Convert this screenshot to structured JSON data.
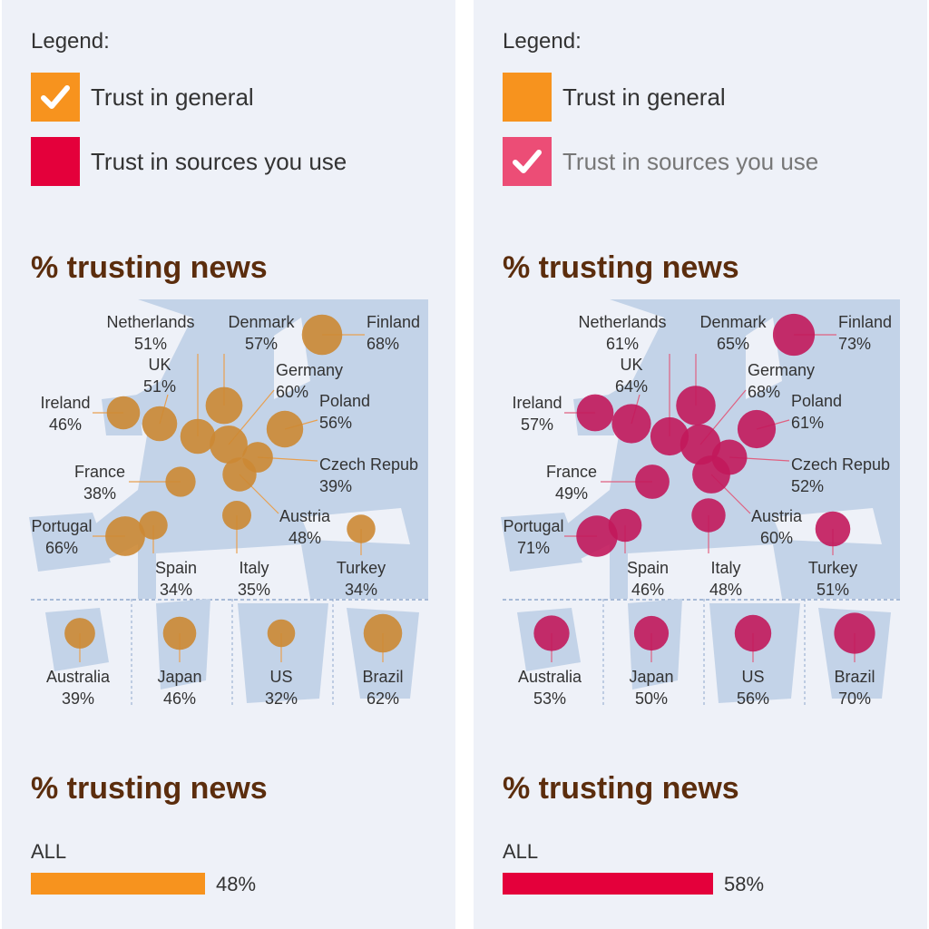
{
  "legend": {
    "title": "Legend:",
    "items": [
      {
        "label": "Trust in general",
        "color": "#f7931e"
      },
      {
        "label": "Trust in sources you use",
        "color": "#e4003b"
      }
    ]
  },
  "colors": {
    "general_bubble": "#cc8833",
    "sources_bubble": "#c2185b",
    "checked_sources_swatch": "#ec4d76",
    "map_land": "#c3d3e8"
  },
  "panels": [
    {
      "id": "left",
      "checked_item": 0,
      "map_title": "% trusting news",
      "bar_title": "% trusting news"
    },
    {
      "id": "right",
      "checked_item": 1,
      "map_title": "% trusting news",
      "bar_title": "% trusting news"
    }
  ],
  "chart_data": [
    {
      "type": "scatter",
      "title": "% trusting news",
      "series": [
        {
          "name": "Trust in general",
          "points": [
            {
              "country": "Netherlands",
              "value": 51
            },
            {
              "country": "Denmark",
              "value": 57
            },
            {
              "country": "Finland",
              "value": 68
            },
            {
              "country": "UK",
              "value": 51
            },
            {
              "country": "Germany",
              "value": 60
            },
            {
              "country": "Ireland",
              "value": 46
            },
            {
              "country": "Poland",
              "value": 56
            },
            {
              "country": "France",
              "value": 38
            },
            {
              "country": "Czech Repub",
              "value": 39
            },
            {
              "country": "Portugal",
              "value": 66
            },
            {
              "country": "Austria",
              "value": 48
            },
            {
              "country": "Spain",
              "value": 34
            },
            {
              "country": "Italy",
              "value": 35
            },
            {
              "country": "Turkey",
              "value": 34
            },
            {
              "country": "Australia",
              "value": 39
            },
            {
              "country": "Japan",
              "value": 46
            },
            {
              "country": "US",
              "value": 32
            },
            {
              "country": "Brazil",
              "value": 62
            }
          ]
        },
        {
          "name": "Trust in sources you use",
          "points": [
            {
              "country": "Netherlands",
              "value": 61
            },
            {
              "country": "Denmark",
              "value": 65
            },
            {
              "country": "Finland",
              "value": 73
            },
            {
              "country": "UK",
              "value": 64
            },
            {
              "country": "Germany",
              "value": 68
            },
            {
              "country": "Ireland",
              "value": 57
            },
            {
              "country": "Poland",
              "value": 61
            },
            {
              "country": "France",
              "value": 49
            },
            {
              "country": "Czech Repub",
              "value": 52
            },
            {
              "country": "Portugal",
              "value": 71
            },
            {
              "country": "Austria",
              "value": 60
            },
            {
              "country": "Spain",
              "value": 46
            },
            {
              "country": "Italy",
              "value": 48
            },
            {
              "country": "Turkey",
              "value": 51
            },
            {
              "country": "Australia",
              "value": 53
            },
            {
              "country": "Japan",
              "value": 50
            },
            {
              "country": "US",
              "value": 56
            },
            {
              "country": "Brazil",
              "value": 70
            }
          ]
        }
      ]
    },
    {
      "type": "bar",
      "title": "% trusting news",
      "categories": [
        "ALL"
      ],
      "series": [
        {
          "name": "Trust in general",
          "values": [
            48
          ]
        },
        {
          "name": "Trust in sources you use",
          "values": [
            58
          ]
        }
      ],
      "xlim": [
        0,
        100
      ]
    }
  ]
}
